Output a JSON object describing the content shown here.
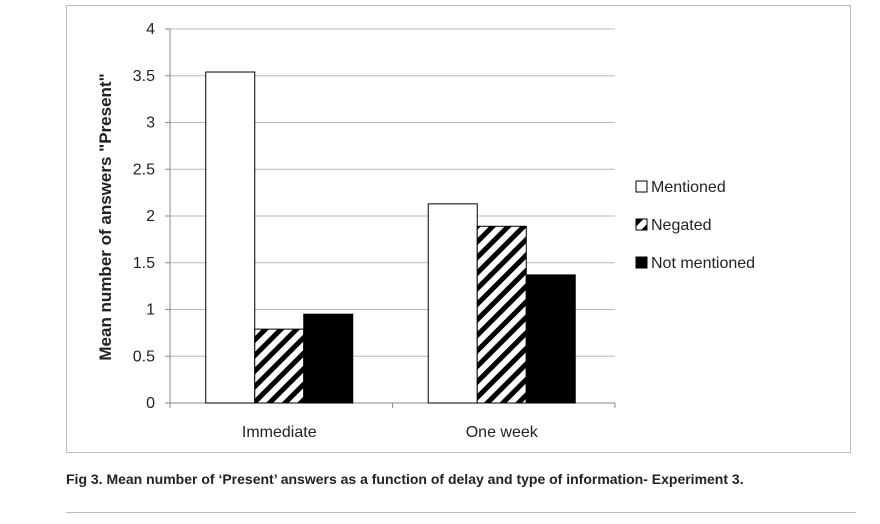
{
  "chart_data": {
    "type": "bar",
    "categories": [
      "Immediate",
      "One week"
    ],
    "series": [
      {
        "name": "Mentioned",
        "values": [
          3.54,
          2.13
        ],
        "fill": "#ffffff",
        "pattern": "none"
      },
      {
        "name": "Negated",
        "values": [
          0.79,
          1.89
        ],
        "fill": "#ffffff",
        "pattern": "diagonal-stripes"
      },
      {
        "name": "Not mentioned",
        "values": [
          0.95,
          1.37
        ],
        "fill": "#000000",
        "pattern": "none"
      }
    ],
    "ylabel": "Mean number of answers \"Present\"",
    "xlabel": "",
    "ylim": [
      0,
      4
    ],
    "yticks": [
      "0",
      "0.5",
      "1",
      "1.5",
      "2",
      "2.5",
      "3",
      "3.5",
      "4"
    ],
    "grid": true,
    "legend_position": "right"
  },
  "caption": "Fig 3.  Mean number of ‘Present’ answers as a function of delay and type of information- Experiment 3."
}
